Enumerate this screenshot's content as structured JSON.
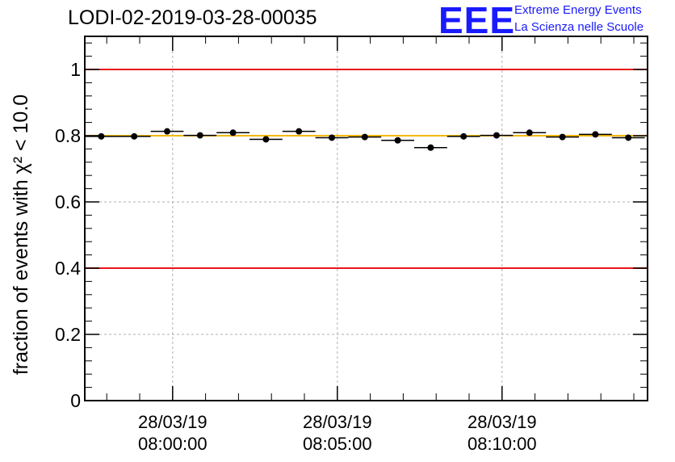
{
  "title": "LODI-02-2019-03-28-00035",
  "logo": {
    "mark": "EEE",
    "line1": "Extreme Energy Events",
    "line2": "La Scienza nelle Scuole"
  },
  "chart_data": {
    "type": "scatter",
    "title": "LODI-02-2019-03-28-00035",
    "ylabel": "fraction of events with χ² < 10.0",
    "ylim": [
      0,
      1.1
    ],
    "yticks": [
      {
        "v": 0,
        "label": "0"
      },
      {
        "v": 0.2,
        "label": "0.2"
      },
      {
        "v": 0.4,
        "label": "0.4"
      },
      {
        "v": 0.6,
        "label": "0.6"
      },
      {
        "v": 0.8,
        "label": "0.8"
      },
      {
        "v": 1.0,
        "label": "1"
      }
    ],
    "xlim": [
      "28/03/19 07:57:20",
      "28/03/19 08:14:25"
    ],
    "xticks": [
      {
        "t": "28/03/19 08:00:00",
        "date": "28/03/19",
        "time": "08:00:00"
      },
      {
        "t": "28/03/19 08:05:00",
        "date": "28/03/19",
        "time": "08:05:00"
      },
      {
        "t": "28/03/19 08:10:00",
        "date": "28/03/19",
        "time": "08:10:00"
      }
    ],
    "grid": true,
    "reference_lines": [
      {
        "y": 1.0,
        "color": "#e8171c"
      },
      {
        "y": 0.4,
        "color": "#e8171c"
      },
      {
        "y": 0.8,
        "color": "#f5b800"
      }
    ],
    "bin_width_s": 60,
    "points": [
      {
        "x": "28/03/19 07:57:50",
        "y": 0.798
      },
      {
        "x": "28/03/19 07:58:50",
        "y": 0.798
      },
      {
        "x": "28/03/19 07:59:50",
        "y": 0.813
      },
      {
        "x": "28/03/19 08:00:50",
        "y": 0.801
      },
      {
        "x": "28/03/19 08:01:50",
        "y": 0.809
      },
      {
        "x": "28/03/19 08:02:50",
        "y": 0.789
      },
      {
        "x": "28/03/19 08:03:50",
        "y": 0.813
      },
      {
        "x": "28/03/19 08:04:50",
        "y": 0.794
      },
      {
        "x": "28/03/19 08:05:50",
        "y": 0.796
      },
      {
        "x": "28/03/19 08:06:50",
        "y": 0.786
      },
      {
        "x": "28/03/19 08:07:50",
        "y": 0.764
      },
      {
        "x": "28/03/19 08:08:50",
        "y": 0.798
      },
      {
        "x": "28/03/19 08:09:50",
        "y": 0.801
      },
      {
        "x": "28/03/19 08:10:50",
        "y": 0.809
      },
      {
        "x": "28/03/19 08:11:50",
        "y": 0.796
      },
      {
        "x": "28/03/19 08:12:50",
        "y": 0.804
      },
      {
        "x": "28/03/19 08:13:50",
        "y": 0.794
      }
    ]
  }
}
